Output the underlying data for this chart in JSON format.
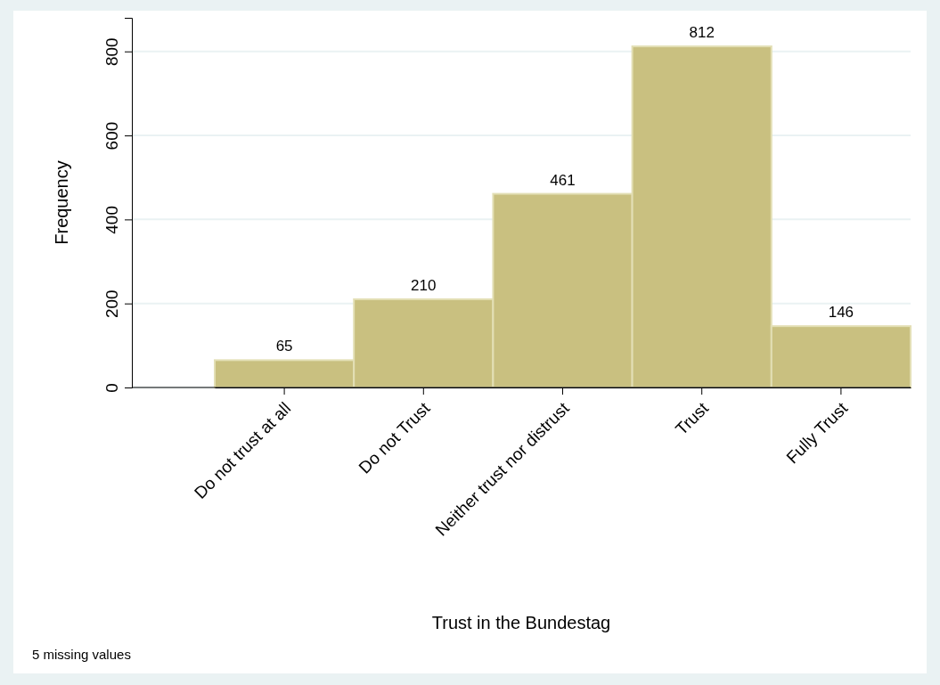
{
  "chart_data": {
    "type": "bar",
    "xlabel": "Trust in the Bundestag",
    "ylabel": "Frequency",
    "categories": [
      "Do not trust at all",
      "Do not Trust",
      "Neither trust nor distrust",
      "Trust",
      "Fully Trust"
    ],
    "values": [
      65,
      210,
      461,
      812,
      146
    ],
    "color": "#c9c080",
    "ylim": [
      0,
      880
    ],
    "yticks": [
      0,
      200,
      400,
      600,
      800
    ],
    "grid": "y",
    "data_labels": true,
    "annotations": [
      "5 missing values"
    ]
  }
}
